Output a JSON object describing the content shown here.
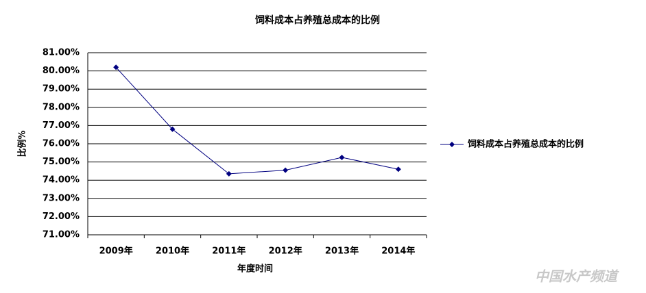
{
  "chart_data": {
    "type": "line",
    "title": "饲料成本占养殖总成本的比例",
    "x_label": "年度时间",
    "y_label": "比例%",
    "categories": [
      "2009年",
      "2010年",
      "2011年",
      "2012年",
      "2013年",
      "2014年"
    ],
    "series": [
      {
        "name": "饲料成本占养殖总成本的比例",
        "color": "#000080",
        "values": [
          80.2,
          76.8,
          74.35,
          74.55,
          75.25,
          74.6
        ]
      }
    ],
    "ylim": [
      71,
      81
    ],
    "yticks": [
      {
        "value": 71,
        "label": "71.00%"
      },
      {
        "value": 72,
        "label": "72.00%"
      },
      {
        "value": 73,
        "label": "73.00%"
      },
      {
        "value": 74,
        "label": "74.00%"
      },
      {
        "value": 75,
        "label": "75.00%"
      },
      {
        "value": 76,
        "label": "76.00%"
      },
      {
        "value": 77,
        "label": "77.00%"
      },
      {
        "value": 78,
        "label": "78.00%"
      },
      {
        "value": 79,
        "label": "79.00%"
      },
      {
        "value": 80,
        "label": "80.00%"
      },
      {
        "value": 81,
        "label": "81.00%"
      }
    ],
    "grid": true,
    "legend": "right",
    "watermark": "中国水产频道"
  }
}
